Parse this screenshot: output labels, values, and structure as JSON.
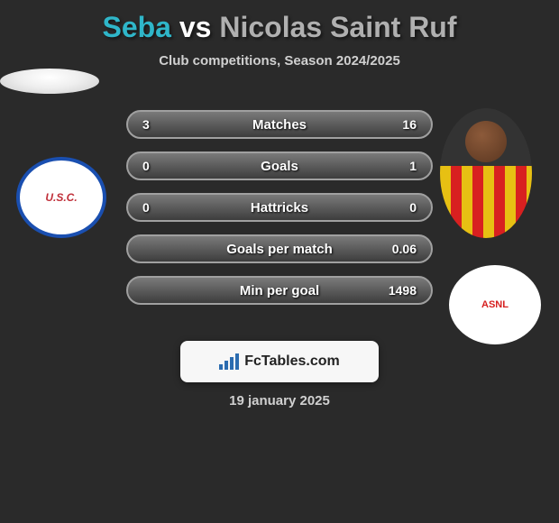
{
  "title": {
    "player1": "Seba",
    "vs": "vs",
    "player2": "Nicolas Saint Ruf",
    "color1": "#2fb6c9",
    "colorVs": "#ffffff",
    "color2": "#b0b0b0"
  },
  "subtitle": "Club competitions, Season 2024/2025",
  "rows": [
    {
      "left": "3",
      "label": "Matches",
      "right": "16"
    },
    {
      "left": "0",
      "label": "Goals",
      "right": "1"
    },
    {
      "left": "0",
      "label": "Hattricks",
      "right": "0"
    },
    {
      "left": "",
      "label": "Goals per match",
      "right": "0.06"
    },
    {
      "left": "",
      "label": "Min per goal",
      "right": "1498"
    }
  ],
  "branding": "FcTables.com",
  "date": "19 january 2025",
  "clubLeft": "U.S.C.",
  "clubRight": "ASNL",
  "colors": {
    "background": "#2a2a2a",
    "rowBorder": "#a0a0a0",
    "textLight": "#d0d0d0"
  },
  "chartIconBars": [
    6,
    10,
    14,
    18
  ]
}
